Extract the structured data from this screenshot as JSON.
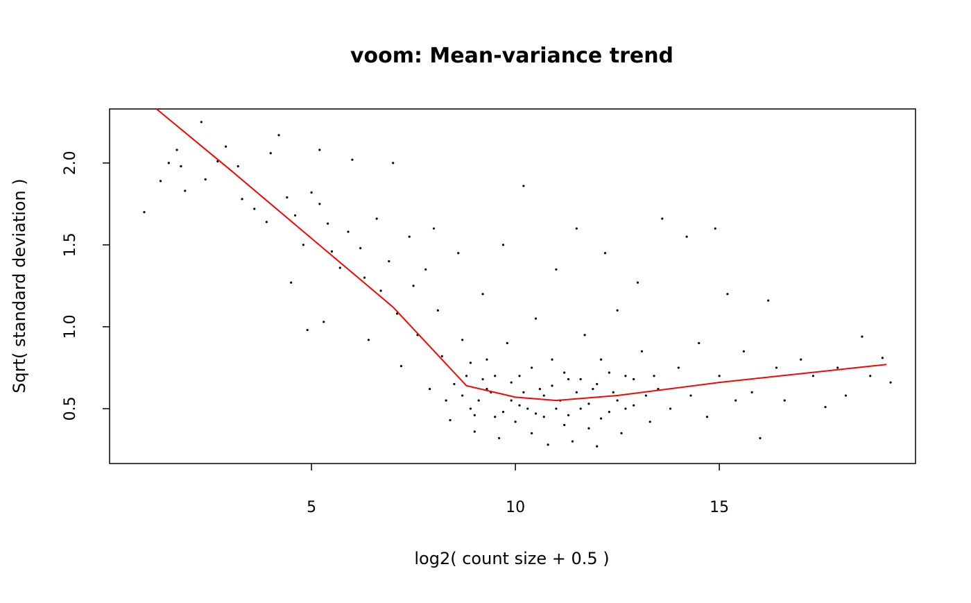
{
  "chart_data": {
    "type": "scatter",
    "title": "voom: Mean-variance trend",
    "xlabel": "log2( count size + 0.5 )",
    "ylabel": "Sqrt( standard deviation )",
    "xlim": [
      0.05,
      19.81
    ],
    "ylim": [
      0.165,
      2.33
    ],
    "xticks": [
      5,
      10,
      15
    ],
    "yticks": [
      0.5,
      {
        "value": 1,
        "label": "1.0"
      },
      1.5,
      {
        "value": 2,
        "label": "2.0"
      }
    ],
    "grid": false,
    "series": [
      {
        "type": "scatter",
        "color": "#000000",
        "x": [
          0.9,
          1.3,
          1.5,
          1.7,
          1.8,
          1.9,
          2.3,
          2.4,
          2.7,
          2.9,
          3.2,
          3.3,
          3.6,
          4.0,
          3.9,
          4.2,
          4.4,
          4.5,
          4.6,
          4.8,
          5.0,
          4.9,
          5.2,
          5.2,
          5.4,
          5.5,
          5.3,
          5.7,
          5.9,
          6.0,
          6.2,
          6.3,
          6.4,
          6.6,
          6.7,
          6.9,
          7.0,
          7.1,
          7.2,
          7.4,
          7.5,
          7.6,
          7.8,
          7.9,
          8.0,
          8.1,
          8.2,
          8.3,
          8.4,
          8.6,
          8.7,
          8.8,
          8.9,
          9.0,
          9.2,
          9.3,
          9.4,
          9.5,
          9.6,
          9.7,
          9.8,
          9.9,
          10.0,
          10.1,
          10.2,
          10.3,
          10.4,
          10.5,
          10.6,
          10.7,
          10.8,
          10.9,
          11.0,
          11.1,
          11.2,
          11.3,
          11.4,
          11.5,
          11.6,
          11.7,
          11.8,
          11.9,
          12.0,
          12.1,
          12.2,
          12.3,
          12.4,
          12.5,
          12.6,
          12.7,
          12.9,
          13.0,
          13.1,
          13.3,
          13.5,
          13.6,
          13.8,
          14.0,
          14.2,
          14.3,
          14.5,
          14.7,
          14.9,
          15.0,
          15.2,
          15.4,
          15.6,
          15.8,
          16.0,
          16.2,
          16.4,
          16.6,
          17.0,
          17.3,
          17.6,
          17.9,
          18.1,
          18.5,
          19.2,
          19.0,
          18.7,
          9.1,
          9.3,
          9.5,
          9.7,
          9.9,
          10.1,
          10.2,
          10.4,
          10.5,
          10.7,
          10.9,
          11.0,
          11.2,
          11.3,
          11.5,
          11.6,
          11.8,
          12.0,
          12.1,
          12.3,
          12.5,
          12.7,
          12.9,
          13.2,
          13.4,
          8.5,
          8.7,
          8.9,
          9.0,
          9.2
        ],
        "y": [
          1.7,
          1.89,
          2.0,
          2.08,
          1.98,
          1.83,
          2.25,
          1.9,
          2.01,
          2.1,
          1.98,
          1.78,
          1.72,
          2.06,
          1.64,
          2.17,
          1.79,
          1.27,
          1.68,
          1.5,
          1.82,
          0.98,
          1.75,
          2.08,
          1.63,
          1.46,
          1.03,
          1.36,
          1.58,
          2.02,
          1.48,
          1.3,
          0.92,
          1.66,
          1.22,
          1.4,
          2.0,
          1.08,
          0.76,
          1.55,
          1.25,
          0.95,
          1.35,
          0.62,
          1.6,
          1.1,
          0.82,
          0.55,
          0.43,
          1.45,
          0.92,
          0.7,
          0.5,
          0.36,
          1.2,
          0.8,
          0.6,
          0.45,
          0.32,
          1.5,
          0.9,
          0.55,
          0.42,
          0.7,
          1.86,
          0.5,
          0.35,
          1.05,
          0.62,
          0.45,
          0.28,
          0.8,
          1.35,
          0.55,
          0.4,
          0.68,
          0.3,
          1.6,
          0.5,
          0.95,
          0.38,
          0.62,
          0.27,
          0.8,
          1.45,
          0.48,
          0.6,
          1.1,
          0.35,
          0.7,
          0.52,
          1.27,
          0.85,
          0.42,
          0.62,
          1.66,
          0.5,
          0.75,
          1.55,
          0.58,
          0.9,
          0.45,
          1.6,
          0.7,
          1.2,
          0.55,
          0.85,
          0.6,
          0.32,
          1.16,
          0.75,
          0.55,
          0.8,
          0.7,
          0.51,
          0.75,
          0.58,
          0.94,
          0.66,
          0.81,
          0.7,
          0.55,
          0.62,
          0.7,
          0.48,
          0.66,
          0.52,
          0.6,
          0.75,
          0.47,
          0.58,
          0.64,
          0.5,
          0.72,
          0.46,
          0.6,
          0.68,
          0.53,
          0.65,
          0.44,
          0.72,
          0.55,
          0.5,
          0.68,
          0.58,
          0.7,
          0.65,
          0.58,
          0.78,
          0.46,
          0.68
        ]
      },
      {
        "type": "line",
        "color": "#ff0000",
        "x": [
          1.2,
          3,
          5,
          7,
          8.8,
          10,
          11,
          12.5,
          15,
          19.1
        ],
        "y": [
          2.33,
          1.96,
          1.54,
          1.12,
          0.64,
          0.57,
          0.55,
          0.58,
          0.66,
          0.77
        ]
      }
    ]
  }
}
